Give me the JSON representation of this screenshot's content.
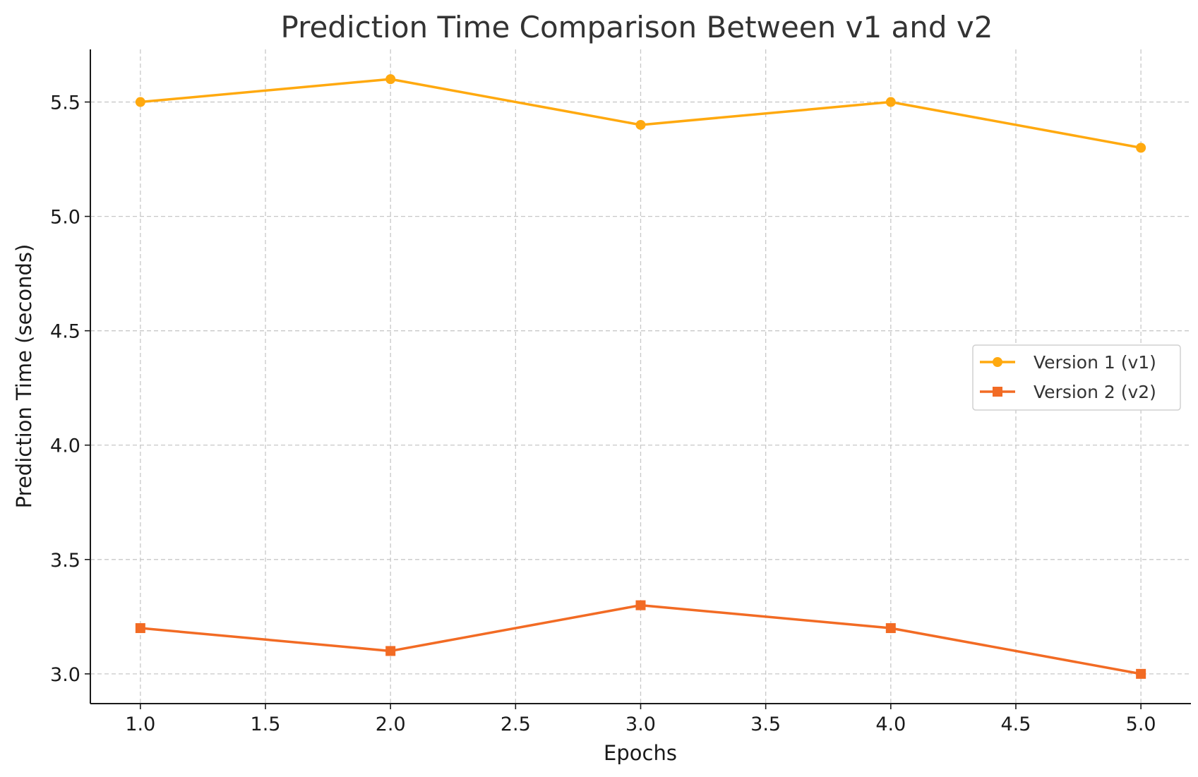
{
  "chart_data": {
    "type": "line",
    "title": "Prediction Time Comparison Between v1 and v2",
    "xlabel": "Epochs",
    "ylabel": "Prediction Time (seconds)",
    "xlim": [
      0.8,
      5.2
    ],
    "ylim": [
      2.87,
      5.73
    ],
    "xticks": [
      1.0,
      1.5,
      2.0,
      2.5,
      3.0,
      3.5,
      4.0,
      4.5,
      5.0
    ],
    "xtick_labels": [
      "1.0",
      "1.5",
      "2.0",
      "2.5",
      "3.0",
      "3.5",
      "4.0",
      "4.5",
      "5.0"
    ],
    "yticks": [
      3.0,
      3.5,
      4.0,
      4.5,
      5.0,
      5.5
    ],
    "ytick_labels": [
      "3.0",
      "3.5",
      "4.0",
      "4.5",
      "5.0",
      "5.5"
    ],
    "grid": true,
    "legend_position": "center-right",
    "x": [
      1,
      2,
      3,
      4,
      5
    ],
    "series": [
      {
        "name": "Version 1 (v1)",
        "values": [
          5.5,
          5.6,
          5.4,
          5.5,
          5.3
        ],
        "color": "#FFA90F",
        "marker": "circle"
      },
      {
        "name": "Version 2 (v2)",
        "values": [
          3.2,
          3.1,
          3.3,
          3.2,
          3.0
        ],
        "color": "#F26B24",
        "marker": "square"
      }
    ]
  }
}
